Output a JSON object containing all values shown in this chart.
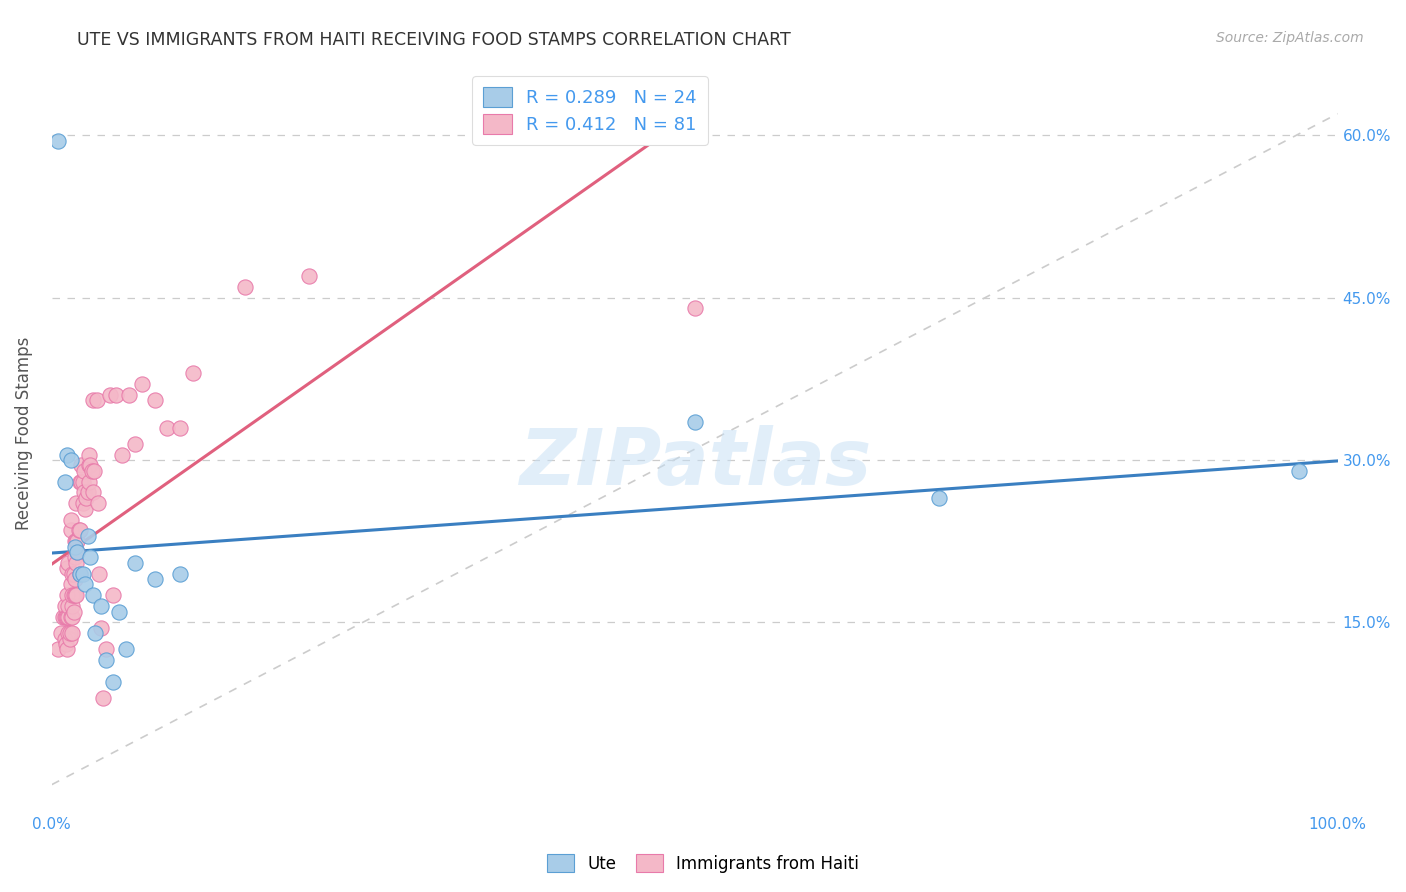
{
  "title": "UTE VS IMMIGRANTS FROM HAITI RECEIVING FOOD STAMPS CORRELATION CHART",
  "source": "Source: ZipAtlas.com",
  "ylabel": "Receiving Food Stamps",
  "ytick_labels": [
    "15.0%",
    "30.0%",
    "45.0%",
    "60.0%"
  ],
  "ytick_values": [
    0.15,
    0.3,
    0.45,
    0.6
  ],
  "xlim": [
    0.0,
    1.0
  ],
  "ylim": [
    -0.02,
    0.67
  ],
  "watermark": "ZIPatlas",
  "legend_ute_R": "0.289",
  "legend_ute_N": "24",
  "legend_haiti_R": "0.412",
  "legend_haiti_N": "81",
  "ute_color": "#a8cce8",
  "haiti_color": "#f4b8c8",
  "ute_edge_color": "#5b9fd4",
  "haiti_edge_color": "#e87aaa",
  "trendline_ute_color": "#3a7fc1",
  "trendline_haiti_color": "#e0607e",
  "trendline_diag_color": "#cccccc",
  "background_color": "#ffffff",
  "ute_points": [
    [
      0.005,
      0.595
    ],
    [
      0.01,
      0.28
    ],
    [
      0.012,
      0.305
    ],
    [
      0.015,
      0.3
    ],
    [
      0.018,
      0.22
    ],
    [
      0.02,
      0.215
    ],
    [
      0.022,
      0.195
    ],
    [
      0.024,
      0.195
    ],
    [
      0.026,
      0.185
    ],
    [
      0.028,
      0.23
    ],
    [
      0.03,
      0.21
    ],
    [
      0.032,
      0.175
    ],
    [
      0.034,
      0.14
    ],
    [
      0.038,
      0.165
    ],
    [
      0.042,
      0.115
    ],
    [
      0.048,
      0.095
    ],
    [
      0.052,
      0.16
    ],
    [
      0.058,
      0.125
    ],
    [
      0.065,
      0.205
    ],
    [
      0.08,
      0.19
    ],
    [
      0.1,
      0.195
    ],
    [
      0.5,
      0.335
    ],
    [
      0.69,
      0.265
    ],
    [
      0.97,
      0.29
    ]
  ],
  "haiti_points": [
    [
      0.005,
      0.125
    ],
    [
      0.007,
      0.14
    ],
    [
      0.009,
      0.155
    ],
    [
      0.01,
      0.135
    ],
    [
      0.01,
      0.155
    ],
    [
      0.01,
      0.165
    ],
    [
      0.011,
      0.13
    ],
    [
      0.011,
      0.155
    ],
    [
      0.012,
      0.125
    ],
    [
      0.012,
      0.155
    ],
    [
      0.012,
      0.175
    ],
    [
      0.012,
      0.2
    ],
    [
      0.013,
      0.14
    ],
    [
      0.013,
      0.155
    ],
    [
      0.013,
      0.165
    ],
    [
      0.013,
      0.205
    ],
    [
      0.014,
      0.135
    ],
    [
      0.014,
      0.14
    ],
    [
      0.015,
      0.155
    ],
    [
      0.015,
      0.185
    ],
    [
      0.015,
      0.235
    ],
    [
      0.015,
      0.245
    ],
    [
      0.016,
      0.14
    ],
    [
      0.016,
      0.155
    ],
    [
      0.016,
      0.165
    ],
    [
      0.016,
      0.175
    ],
    [
      0.016,
      0.195
    ],
    [
      0.017,
      0.16
    ],
    [
      0.017,
      0.175
    ],
    [
      0.017,
      0.195
    ],
    [
      0.018,
      0.175
    ],
    [
      0.018,
      0.19
    ],
    [
      0.018,
      0.21
    ],
    [
      0.018,
      0.225
    ],
    [
      0.019,
      0.175
    ],
    [
      0.019,
      0.205
    ],
    [
      0.019,
      0.225
    ],
    [
      0.019,
      0.26
    ],
    [
      0.02,
      0.225
    ],
    [
      0.02,
      0.215
    ],
    [
      0.021,
      0.235
    ],
    [
      0.022,
      0.195
    ],
    [
      0.022,
      0.235
    ],
    [
      0.022,
      0.28
    ],
    [
      0.023,
      0.28
    ],
    [
      0.023,
      0.295
    ],
    [
      0.024,
      0.26
    ],
    [
      0.024,
      0.28
    ],
    [
      0.025,
      0.27
    ],
    [
      0.025,
      0.29
    ],
    [
      0.026,
      0.255
    ],
    [
      0.027,
      0.265
    ],
    [
      0.028,
      0.27
    ],
    [
      0.029,
      0.28
    ],
    [
      0.029,
      0.295
    ],
    [
      0.029,
      0.305
    ],
    [
      0.03,
      0.295
    ],
    [
      0.031,
      0.29
    ],
    [
      0.032,
      0.27
    ],
    [
      0.032,
      0.355
    ],
    [
      0.033,
      0.29
    ],
    [
      0.035,
      0.355
    ],
    [
      0.036,
      0.26
    ],
    [
      0.037,
      0.195
    ],
    [
      0.038,
      0.145
    ],
    [
      0.04,
      0.08
    ],
    [
      0.042,
      0.125
    ],
    [
      0.045,
      0.36
    ],
    [
      0.048,
      0.175
    ],
    [
      0.05,
      0.36
    ],
    [
      0.055,
      0.305
    ],
    [
      0.06,
      0.36
    ],
    [
      0.065,
      0.315
    ],
    [
      0.07,
      0.37
    ],
    [
      0.08,
      0.355
    ],
    [
      0.09,
      0.33
    ],
    [
      0.1,
      0.33
    ],
    [
      0.11,
      0.38
    ],
    [
      0.15,
      0.46
    ],
    [
      0.2,
      0.47
    ],
    [
      0.5,
      0.44
    ]
  ]
}
